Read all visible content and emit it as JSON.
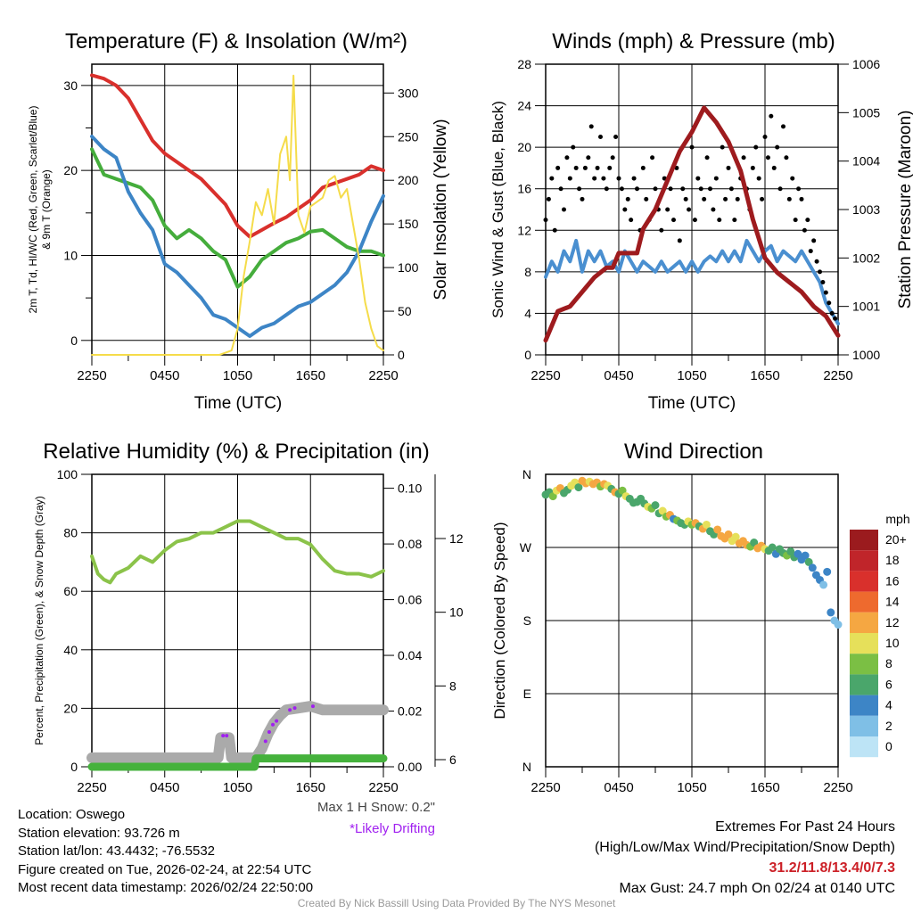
{
  "time_ticks": [
    "2250",
    "0450",
    "1050",
    "1650",
    "2250"
  ],
  "colors": {
    "temp": "#d9302c",
    "dewpoint": "#3d85c6",
    "windchill": "#45ad3c",
    "solar": "#f5dc4a",
    "wind": "#4a8fd0",
    "gust": "#000000",
    "pressure": "#9e1b1e",
    "rh": "#8bc34a",
    "precip": "#45b23c",
    "snow": "#aaaaaa",
    "drift": "#a020f0",
    "extremes": "#cc1f26"
  },
  "chart_data": [
    {
      "type": "line",
      "title": "Temperature (F) & Insolation (W/m²)",
      "xlabel": "Time (UTC)",
      "ylabel": "2m T, Tₐ, HI/WC (Red, Green, Scarlet/Blue) & 9m T (Orange)",
      "ylabel_line1": "2m T, Td, HI/WC (Red, Green, Scarlet/Blue)",
      "ylabel_line2": "& 9m T (Orange)",
      "y2label": "Solar Insolation (Yellow)",
      "ylim": [
        -1.7,
        32.5
      ],
      "y2lim": [
        0,
        333
      ],
      "yticks": [
        0,
        10,
        20,
        30
      ],
      "y2ticks": [
        0,
        50,
        100,
        150,
        200,
        250,
        300
      ],
      "x_hours": [
        0,
        1,
        2,
        3,
        4,
        5,
        6,
        7,
        8,
        9,
        10,
        11,
        12,
        13,
        14,
        15,
        16,
        17,
        18,
        19,
        20,
        21,
        22,
        23,
        24
      ],
      "series": [
        {
          "name": "2m T",
          "axis": "left",
          "color_key": "temp",
          "values": [
            31.2,
            30.8,
            30,
            28.5,
            26,
            23.5,
            22,
            21,
            20,
            19,
            17.5,
            16,
            13.5,
            12.2,
            13,
            13.8,
            14.5,
            15.5,
            16.5,
            18,
            18.5,
            19,
            19.5,
            20.5,
            20
          ]
        },
        {
          "name": "HI/WC",
          "axis": "left",
          "color_key": "windchill",
          "values": [
            22.5,
            19.5,
            19,
            18.5,
            18,
            16.5,
            13.5,
            12,
            13,
            12,
            10.5,
            9.5,
            6.3,
            7.5,
            9.5,
            10.5,
            11.5,
            12,
            12.8,
            13,
            12,
            11,
            10.5,
            10.5,
            10
          ]
        },
        {
          "name": "Td",
          "axis": "left",
          "color_key": "dewpoint",
          "values": [
            24,
            22.5,
            21.5,
            17.5,
            15,
            13,
            9,
            8,
            6.5,
            5,
            3,
            2.5,
            1.5,
            0.5,
            1.5,
            2,
            3,
            4,
            4.5,
            5.5,
            6.5,
            8,
            10.5,
            14,
            17
          ]
        },
        {
          "name": "Solar",
          "axis": "right",
          "color_key": "solar",
          "x": [
            0,
            10.5,
            11.5,
            12,
            12.5,
            13,
            13.5,
            14,
            14.5,
            15,
            15.5,
            16,
            16.3,
            16.6,
            17,
            17.5,
            18,
            18.5,
            19,
            19.5,
            20,
            20.5,
            21,
            21.5,
            22,
            22.5,
            23,
            23.5,
            24
          ],
          "values": [
            0,
            0,
            5,
            30,
            90,
            130,
            175,
            160,
            190,
            150,
            230,
            250,
            200,
            320,
            160,
            140,
            170,
            175,
            180,
            200,
            205,
            180,
            190,
            150,
            110,
            60,
            30,
            10,
            5
          ]
        }
      ]
    },
    {
      "type": "line",
      "title": "Winds (mph) & Pressure (mb)",
      "xlabel": "Time (UTC)",
      "ylabel": "Sonic Wind & Gust (Blue, Black)",
      "y2label": "Station Pressure (Maroon)",
      "ylim": [
        0,
        28
      ],
      "y2lim": [
        1000,
        1006
      ],
      "yticks": [
        0,
        4,
        8,
        12,
        16,
        20,
        24,
        28
      ],
      "y2ticks": [
        1000,
        1001,
        1002,
        1003,
        1004,
        1005,
        1006
      ],
      "wind_x_step_hours": 0.5,
      "wind": [
        7.5,
        9,
        8,
        10,
        9,
        11,
        8,
        10,
        9,
        10,
        8.5,
        9,
        8,
        10,
        9,
        8,
        9,
        8.5,
        8,
        9,
        8,
        8.5,
        9,
        8,
        9,
        8,
        9,
        9.5,
        9,
        10,
        9,
        10,
        9,
        11,
        10,
        9,
        10,
        10.5,
        9,
        10,
        9.5,
        9,
        10,
        9,
        8,
        7,
        5,
        4,
        3
      ],
      "gust_x_step_hours": 0.25,
      "gust": [
        13,
        15,
        17,
        12,
        18,
        16,
        14,
        19,
        17,
        20,
        18,
        16,
        15,
        18,
        19,
        22,
        17,
        18,
        21,
        17,
        16,
        18,
        19,
        21,
        17,
        16,
        14,
        15,
        13,
        17,
        16,
        12,
        18,
        15,
        13,
        19,
        16,
        14,
        12,
        17,
        14,
        16,
        13,
        18,
        11,
        16,
        15,
        14,
        20,
        13,
        17,
        16,
        15,
        19,
        16,
        14,
        17,
        13,
        20,
        15,
        18,
        16,
        13,
        15,
        17,
        19,
        16,
        14,
        18,
        20,
        17,
        15,
        21,
        19,
        23,
        18,
        20,
        16,
        22,
        19,
        15,
        17,
        13,
        16,
        15,
        12,
        13,
        10,
        11,
        9,
        8,
        7,
        6,
        5,
        4,
        3.5
      ],
      "pressure_x": [
        0,
        1,
        2,
        3,
        4,
        5,
        5.5,
        6,
        7,
        7.5,
        8,
        9,
        10,
        11,
        12,
        13,
        14,
        15,
        16,
        17,
        18,
        19,
        20,
        21,
        22,
        23,
        24
      ],
      "pressure": [
        1000.3,
        1000.9,
        1001.0,
        1001.3,
        1001.6,
        1001.8,
        1001.8,
        1002.1,
        1002.1,
        1002.1,
        1002.6,
        1003.0,
        1003.6,
        1004.2,
        1004.6,
        1005.1,
        1004.8,
        1004.4,
        1003.8,
        1002.8,
        1002.0,
        1001.7,
        1001.5,
        1001.3,
        1001.0,
        1000.8,
        1000.4
      ]
    },
    {
      "type": "line",
      "title": "Relative Humidity (%) & Precipitation (in)",
      "ylabel": "Percent, Precipitation (Green), & Snow Depth (Gray)",
      "ylim": [
        0,
        100
      ],
      "yticks": [
        0,
        20,
        40,
        60,
        80,
        100
      ],
      "y2lim": [
        0,
        0.105
      ],
      "y2ticks": [
        "0.00",
        "0.02",
        "0.04",
        "0.06",
        "0.08",
        "0.10"
      ],
      "y3ticks": [
        6,
        8,
        10,
        12
      ],
      "rh_x": [
        0,
        0.5,
        1,
        1.5,
        2,
        3,
        4,
        5,
        6,
        7,
        8,
        9,
        10,
        11,
        12,
        13,
        14,
        15,
        16,
        17,
        18,
        19,
        20,
        21,
        22,
        23,
        24
      ],
      "rh": [
        72,
        66,
        64,
        63,
        66,
        68,
        72,
        70,
        74,
        77,
        78,
        80,
        80,
        82,
        84,
        84,
        82,
        80,
        78,
        78,
        76,
        71,
        67,
        66,
        66,
        65,
        67
      ],
      "precip_x": [
        0,
        13.4,
        13.5,
        24
      ],
      "precip": [
        0,
        0,
        0.003,
        0.003
      ],
      "snow_x": [
        0,
        10.4,
        10.6,
        11.3,
        11.5,
        13.5,
        14,
        14.5,
        15,
        15.5,
        16,
        17,
        18,
        19,
        24
      ],
      "snow": [
        6.05,
        6.05,
        6.6,
        6.6,
        6.05,
        6.05,
        6.3,
        6.7,
        7.0,
        7.2,
        7.35,
        7.4,
        7.45,
        7.35,
        7.35
      ],
      "drift_x": [
        10.8,
        11.1,
        14.3,
        14.6,
        14.9,
        15.2,
        16.3,
        16.7,
        18.2
      ],
      "drift": [
        6.65,
        6.65,
        6.5,
        6.75,
        6.95,
        7.05,
        7.35,
        7.4,
        7.45
      ],
      "max_snow_label": "Max 1 H Snow: 0.2\"",
      "drifting_label": "*Likely Drifting"
    },
    {
      "type": "scatter",
      "title": "Wind Direction",
      "ylabel": "Direction (Colored By Speed)",
      "yticks": [
        {
          "deg": 0,
          "label": "N"
        },
        {
          "deg": 90,
          "label": "E"
        },
        {
          "deg": 180,
          "label": "S"
        },
        {
          "deg": 270,
          "label": "W"
        },
        {
          "deg": 360,
          "label": "N"
        }
      ],
      "points": [
        [
          0,
          335,
          7
        ],
        [
          0.3,
          338,
          6
        ],
        [
          0.6,
          333,
          8
        ],
        [
          0.9,
          340,
          11
        ],
        [
          1.2,
          343,
          12
        ],
        [
          1.5,
          337,
          6
        ],
        [
          1.8,
          341,
          7
        ],
        [
          2.1,
          346,
          10
        ],
        [
          2.4,
          350,
          11
        ],
        [
          2.7,
          344,
          7
        ],
        [
          3,
          352,
          12
        ],
        [
          3.3,
          349,
          12
        ],
        [
          3.6,
          351,
          11
        ],
        [
          3.9,
          348,
          12
        ],
        [
          4.2,
          350,
          12
        ],
        [
          4.5,
          345,
          8
        ],
        [
          4.8,
          348,
          12
        ],
        [
          5.1,
          346,
          10
        ],
        [
          5.4,
          342,
          7
        ],
        [
          5.7,
          338,
          12
        ],
        [
          6,
          336,
          7
        ],
        [
          6.3,
          340,
          8
        ],
        [
          6.6,
          333,
          11
        ],
        [
          6.9,
          330,
          7
        ],
        [
          7.2,
          325,
          7
        ],
        [
          7.5,
          326,
          6
        ],
        [
          7.8,
          330,
          6
        ],
        [
          8.1,
          324,
          6
        ],
        [
          8.4,
          320,
          10
        ],
        [
          8.7,
          318,
          8
        ],
        [
          9,
          322,
          7
        ],
        [
          9.3,
          312,
          6
        ],
        [
          9.6,
          315,
          11
        ],
        [
          9.9,
          308,
          8
        ],
        [
          10.2,
          310,
          12
        ],
        [
          10.5,
          305,
          4
        ],
        [
          10.8,
          303,
          8
        ],
        [
          11.1,
          300,
          6
        ],
        [
          11.4,
          298,
          7
        ],
        [
          11.7,
          302,
          10
        ],
        [
          12,
          298,
          8
        ],
        [
          12.3,
          300,
          12
        ],
        [
          12.6,
          296,
          7
        ],
        [
          12.9,
          293,
          12
        ],
        [
          13.2,
          298,
          10
        ],
        [
          13.5,
          290,
          6
        ],
        [
          13.8,
          286,
          7
        ],
        [
          14.1,
          292,
          12
        ],
        [
          14.4,
          284,
          12
        ],
        [
          14.7,
          281,
          12
        ],
        [
          15,
          286,
          12
        ],
        [
          15.3,
          278,
          11
        ],
        [
          15.6,
          283,
          10
        ],
        [
          15.9,
          275,
          12
        ],
        [
          16.2,
          278,
          13
        ],
        [
          16.5,
          273,
          12
        ],
        [
          16.8,
          271,
          8
        ],
        [
          17.1,
          276,
          7
        ],
        [
          17.4,
          269,
          12
        ],
        [
          17.7,
          272,
          12
        ],
        [
          18,
          268,
          10
        ],
        [
          18.3,
          266,
          6
        ],
        [
          18.6,
          270,
          6
        ],
        [
          18.9,
          262,
          5
        ],
        [
          19.2,
          268,
          6
        ],
        [
          19.5,
          263,
          6
        ],
        [
          19.8,
          260,
          8
        ],
        [
          20.1,
          265,
          6
        ],
        [
          20.4,
          258,
          6
        ],
        [
          20.7,
          262,
          5
        ],
        [
          21,
          255,
          4
        ],
        [
          21.3,
          260,
          4
        ],
        [
          21.6,
          252,
          6
        ],
        [
          21.9,
          245,
          4
        ],
        [
          22.2,
          236,
          4
        ],
        [
          22.5,
          230,
          4
        ],
        [
          22.8,
          224,
          3
        ],
        [
          23.1,
          240,
          4
        ],
        [
          23.4,
          190,
          4
        ],
        [
          23.7,
          180,
          3
        ],
        [
          24,
          175,
          2
        ]
      ],
      "colorbar": {
        "title": "mph",
        "labels": [
          "20+",
          "18",
          "16",
          "14",
          "12",
          "10",
          "8",
          "6",
          "4",
          "2",
          "0"
        ],
        "colors": [
          "#9b1b1e",
          "#c0252a",
          "#d9302c",
          "#ee6a2e",
          "#f5a742",
          "#e6e05a",
          "#7bbf44",
          "#4aa66b",
          "#3d85c6",
          "#7fbfe6",
          "#bde4f6"
        ]
      }
    }
  ],
  "station": {
    "location": "Location: Oswego",
    "elevation": "Station elevation: 93.726 m",
    "latlon": "Station lat/lon: 43.4432; -76.5532",
    "created": "Figure created on Tue, 2026-02-24, at 22:54 UTC",
    "recent": "Most recent data timestamp: 2026/02/24 22:50:00"
  },
  "extremes": {
    "title": "Extremes For Past 24 Hours",
    "subtitle": "(High/Low/Max Wind/Precipitation/Snow Depth)",
    "values": "31.2/11.8/13.4/0/7.3",
    "max_gust": "Max Gust: 24.7 mph On 02/24 at 0140 UTC"
  },
  "credit": "Created By Nick Bassill Using Data Provided By The NYS Mesonet"
}
